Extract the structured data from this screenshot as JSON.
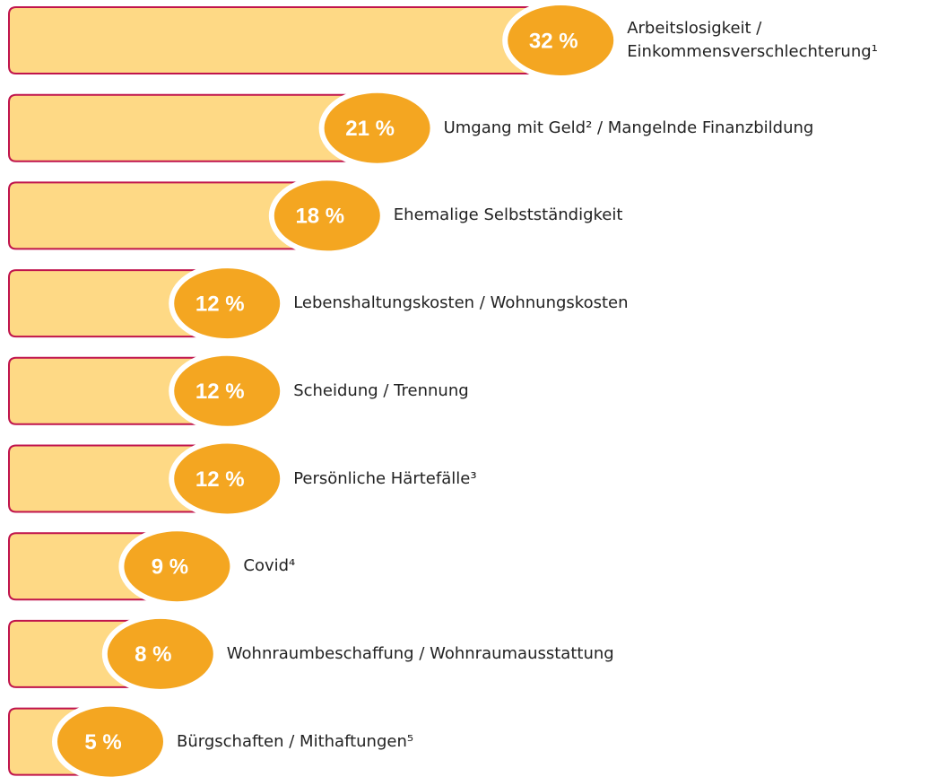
{
  "chart_data": {
    "type": "bar",
    "orientation": "horizontal",
    "categories": [
      "Arbeitslosigkeit  /\nEinkommensverschlechterung¹",
      "Umgang mit Geld² / Mangelnde Finanzbildung",
      "Ehemalige Selbstständigkeit",
      "Lebenshaltungskosten / Wohnungskosten",
      "Scheidung / Trennung",
      "Persönliche Härtefälle³",
      "Covid⁴",
      "Wohnraumbeschaffung / Wohnraumausstattung",
      "Bürgschaften / Mithaftungen⁵"
    ],
    "values": [
      32,
      21,
      18,
      12,
      12,
      12,
      9,
      8,
      5
    ],
    "value_labels": [
      "32 %",
      "21 %",
      "18 %",
      "12 %",
      "12 %",
      "12 %",
      "9 %",
      "8 %",
      "5 %"
    ],
    "color": "#fed985",
    "edge_color": "#c0144c",
    "badge_color": "#f4a621"
  }
}
